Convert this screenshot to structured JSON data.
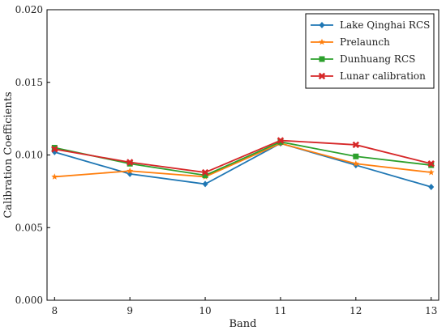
{
  "chart_data": {
    "type": "line",
    "xlabel": "Band",
    "ylabel": "Calibration Coefficients",
    "x": [
      8,
      9,
      10,
      11,
      12,
      13
    ],
    "xlim": [
      7.9,
      13.1
    ],
    "ylim": [
      0.0,
      0.02
    ],
    "xticks": [
      "8",
      "9",
      "10",
      "11",
      "12",
      "13"
    ],
    "yticks": [
      "0.000",
      "0.005",
      "0.010",
      "0.015",
      "0.020"
    ],
    "legend_position": "top-right",
    "grid": false,
    "series": [
      {
        "name": "Lake Qinghai RCS",
        "color": "#1f77b4",
        "marker": "diamond",
        "values": [
          0.0102,
          0.0087,
          0.008,
          0.0108,
          0.0093,
          0.0078
        ]
      },
      {
        "name": "Prelaunch",
        "color": "#ff7f0e",
        "marker": "star",
        "values": [
          0.0085,
          0.0089,
          0.0085,
          0.0108,
          0.0094,
          0.0088
        ]
      },
      {
        "name": "Dunhuang RCS",
        "color": "#2ca02c",
        "marker": "square",
        "values": [
          0.0105,
          0.0094,
          0.0086,
          0.0109,
          0.0099,
          0.0093
        ]
      },
      {
        "name": "Lunar calibration",
        "color": "#d62728",
        "marker": "x",
        "values": [
          0.0104,
          0.0095,
          0.0088,
          0.011,
          0.0107,
          0.0094
        ]
      }
    ]
  }
}
